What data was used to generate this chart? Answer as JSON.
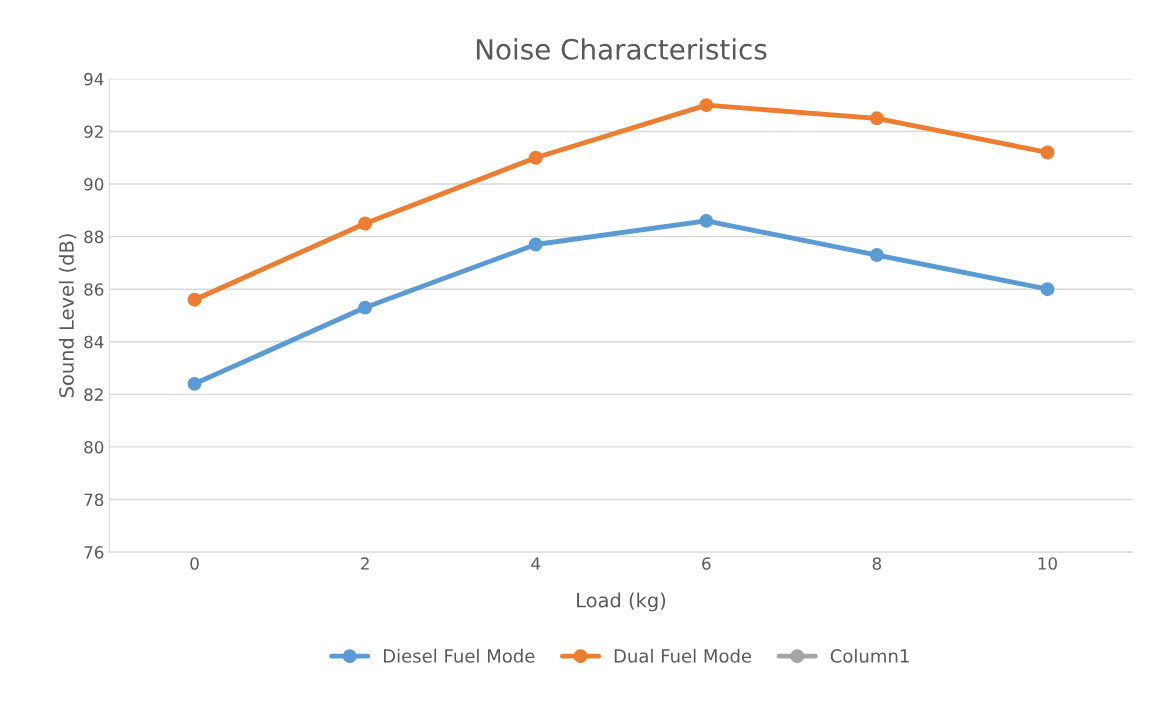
{
  "chart_data": {
    "type": "line",
    "title": "Noise Characteristics",
    "xlabel": "Load (kg)",
    "ylabel": "Sound Level (dB)",
    "categories": [
      "0",
      "2",
      "4",
      "6",
      "8",
      "10"
    ],
    "series": [
      {
        "name": "Diesel Fuel Mode",
        "color": "#5b9bd5",
        "values": [
          82.4,
          85.3,
          87.7,
          88.6,
          87.3,
          86.0
        ]
      },
      {
        "name": "Dual Fuel Mode",
        "color": "#ed7d31",
        "values": [
          85.6,
          88.5,
          91.0,
          93.0,
          92.5,
          91.2
        ]
      },
      {
        "name": "Column1",
        "color": "#a5a5a5",
        "values": [
          null,
          null,
          null,
          null,
          null,
          null
        ]
      }
    ],
    "ylim": [
      76,
      94
    ],
    "yticks": [
      76,
      78,
      80,
      82,
      84,
      86,
      88,
      90,
      92,
      94
    ],
    "grid": "y",
    "legend": "bottom",
    "marker": "circle",
    "line_style": "solid"
  }
}
